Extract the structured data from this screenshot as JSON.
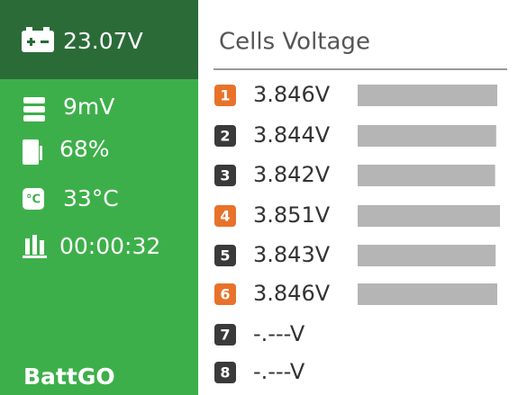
{
  "sidebar": {
    "pack_voltage": "23.07V",
    "stats": [
      "9mV",
      "68%",
      "33°C",
      "00:00:32"
    ],
    "brand": "BattGO"
  },
  "panel": {
    "title": "Cells Voltage",
    "cells": [
      {
        "badge": "1",
        "voltage": "3.846V",
        "value": 3.846,
        "highlight": true
      },
      {
        "badge": "2",
        "voltage": "3.844V",
        "value": 3.844,
        "highlight": false
      },
      {
        "badge": "3",
        "voltage": "3.842V",
        "value": 3.842,
        "highlight": false
      },
      {
        "badge": "4",
        "voltage": "3.851V",
        "value": 3.851,
        "highlight": true
      },
      {
        "badge": "5",
        "voltage": "3.843V",
        "value": 3.843,
        "highlight": false
      },
      {
        "badge": "6",
        "voltage": "3.846V",
        "value": 3.846,
        "highlight": true
      },
      {
        "badge": "7",
        "voltage": "-.---V",
        "value": null,
        "highlight": false
      },
      {
        "badge": "8",
        "voltage": "-.---V",
        "value": null,
        "highlight": false
      }
    ]
  }
}
